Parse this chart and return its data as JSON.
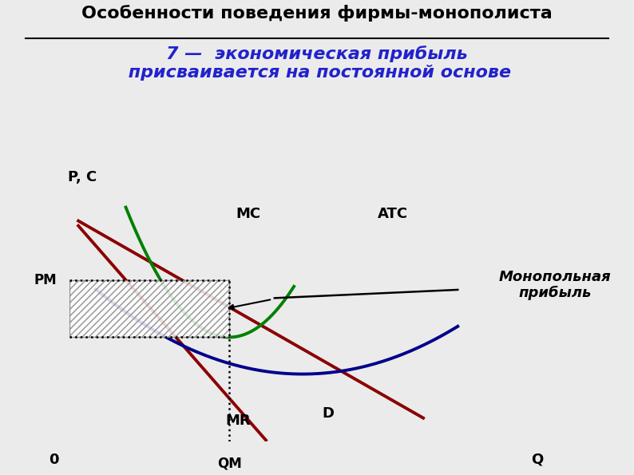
{
  "title_main": "Особенности поведения фирмы-монополиста",
  "title_sub": "7 —  экономическая прибыль\n присваивается на постоянной основе",
  "ylabel": "P, C",
  "xlabel": "Q",
  "origin_label": "0",
  "qm_label": "QМ",
  "pm_label": "PМ",
  "mc_label": "MC",
  "atc_label": "ATC",
  "mr_label": "MR",
  "d_label": "D",
  "monopoly_profit_label": "Монопольная\nприбыль",
  "qm": 0.37,
  "pm": 0.68,
  "atc_qm": 0.44,
  "bg_color": "#ebebeb",
  "mc_color": "#008000",
  "atc_color": "#00008B",
  "d_mr_color": "#8B0000",
  "title_main_fontsize": 16,
  "title_sub_fontsize": 16,
  "curve_lw": 2.8
}
